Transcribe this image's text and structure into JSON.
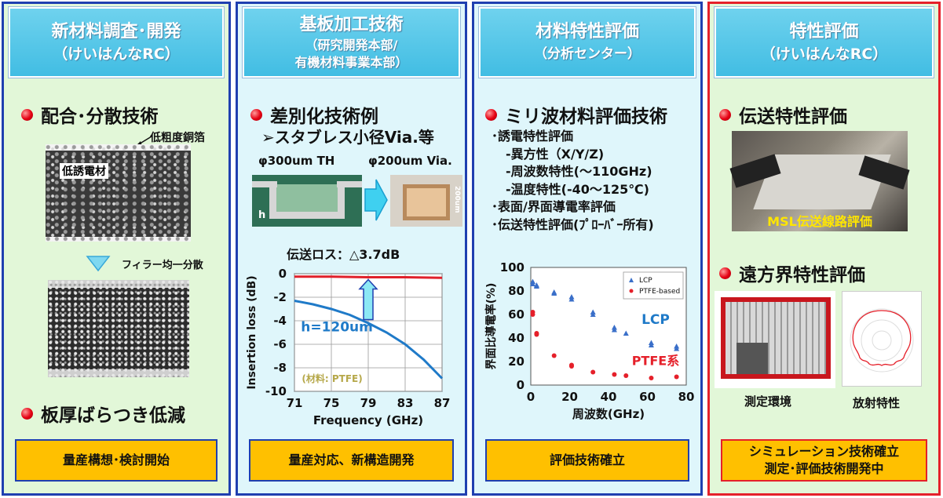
{
  "col1": {
    "header_line1": "新材料調査･開発",
    "header_line2": "（けいはんなRC）",
    "bullet1": "配合･分散技術",
    "label_copper": "低粗度銅箔",
    "label_dielectric": "低誘電材",
    "label_filler": "フィラー均一分散",
    "bullet2": "板厚ばらつき低減",
    "box": "量産構想･検討開始"
  },
  "col2": {
    "header_line1": "基板加工技術",
    "header_sub1": "（研究開発本部/",
    "header_sub2": "有機材料事業本部）",
    "bullet1": "差別化技術例",
    "sub": "➢スタブレス小径Via.等",
    "label_th": "φ300um TH",
    "label_via": "φ200um Via.",
    "label_h": "h",
    "label_200um": "200um",
    "loss_title": "伝送ロス：△3.7dB",
    "box": "量産対応、新構造開発"
  },
  "col3": {
    "header_line1": "材料特性評価",
    "header_line2": "（分析センター）",
    "bullet1": "ミリ波材料評価技術",
    "list": [
      "･誘電特性評価",
      "-異方性（X/Y/Z)",
      "-周波数特性(～110GHz)",
      "-温度特性(-40～125℃)",
      "･表面/界面導電率評価",
      "･伝送特性評価(ﾌﾟﾛｰﾊﾞｰ所有)"
    ],
    "box": "評価技術確立"
  },
  "col4": {
    "header_line1": "特性評価",
    "header_line2": "（けいはんなRC）",
    "bullet1": "伝送特性評価",
    "msl": "MSL伝送線路評価",
    "bullet2": "遠方界特性評価",
    "cap1": "測定環境",
    "cap2": "放射特性",
    "box_line1": "シミュレーション技術確立",
    "box_line2": "測定･評価技術開発中"
  },
  "chart_data": [
    {
      "type": "line",
      "xlabel": "Frequency (GHz)",
      "ylabel": "Insertion loss (dB)",
      "xlim": [
        71,
        87
      ],
      "ylim": [
        -10,
        0
      ],
      "xticks": [
        "71",
        "75",
        "79",
        "83",
        "87"
      ],
      "yticks": [
        "0",
        "-2",
        "-4",
        "-6",
        "-8",
        "-10"
      ],
      "grid": true,
      "annotation_h": "h=120um",
      "annotation_material": "(材料: PTFE)",
      "series": [
        {
          "x": [
            71,
            75,
            79,
            83,
            87
          ],
          "values": [
            -0.25,
            -0.25,
            -0.3,
            -0.3,
            -0.35
          ],
          "color": "#e0202a"
        },
        {
          "x": [
            71,
            73,
            75,
            77,
            79,
            81,
            83,
            85,
            87
          ],
          "values": [
            -2.3,
            -2.6,
            -3.0,
            -3.5,
            -4.2,
            -5.0,
            -6.0,
            -7.3,
            -8.9
          ],
          "color": "#1f7ac8"
        }
      ]
    },
    {
      "type": "scatter",
      "xlabel": "周波数(GHz)",
      "ylabel": "界面比導電率(%)",
      "xlim": [
        0,
        80
      ],
      "ylim": [
        0,
        100
      ],
      "xticks": [
        "0",
        "20",
        "40",
        "60",
        "80"
      ],
      "yticks": [
        "0",
        "20",
        "40",
        "60",
        "80",
        "100"
      ],
      "label_lcp": "LCP",
      "label_ptfe": "PTFE系",
      "series": [
        {
          "name": "LCP",
          "color": "#3a6fc9",
          "x": [
            1,
            1,
            3,
            3,
            12,
            12,
            21,
            21,
            32,
            32,
            43,
            43,
            49,
            62,
            62,
            75,
            75
          ],
          "values": [
            88,
            86,
            85,
            84,
            79,
            78,
            75,
            73,
            62,
            60,
            49,
            47,
            44,
            36,
            34,
            33,
            31
          ]
        },
        {
          "name": "PTFE-based",
          "color": "#e5202a",
          "x": [
            1,
            1,
            3,
            3,
            12,
            21,
            21,
            32,
            43,
            49,
            62,
            75
          ],
          "values": [
            62,
            60,
            44,
            43,
            25,
            17,
            16,
            11,
            9,
            8,
            6,
            7
          ]
        }
      ]
    }
  ]
}
